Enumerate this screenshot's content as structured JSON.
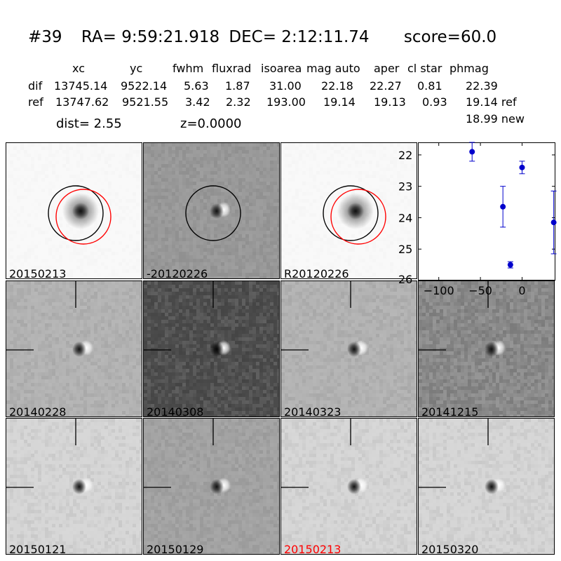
{
  "header": {
    "id": "#39",
    "ra": "RA= 9:59:21.918",
    "dec": "DEC= 2:12:11.74",
    "score": "score=60.0"
  },
  "table": {
    "columns": [
      "xc",
      "yc",
      "fwhm",
      "fluxrad",
      "isoarea",
      "mag auto",
      "aper",
      "cl star",
      "phmag"
    ],
    "dif": {
      "label": "dif",
      "values": [
        "13745.14",
        "9522.14",
        "5.63",
        "1.87",
        "31.00",
        "22.18",
        "22.27",
        "0.81",
        "22.39"
      ]
    },
    "ref": {
      "label": "ref",
      "values": [
        "13747.62",
        "9521.55",
        "3.42",
        "2.32",
        "193.00",
        "19.14",
        "19.13",
        "0.93",
        "19.14 ref"
      ]
    },
    "new_mag": "18.99 new"
  },
  "dist_text": "dist=  2.55",
  "z_text": "z=0.0000",
  "panels": [
    {
      "label": "20150213",
      "kind": "new",
      "label_color": "#000000"
    },
    {
      "label": "-20120226",
      "kind": "diff_top",
      "label_color": "#000000"
    },
    {
      "label": "R20120226",
      "kind": "ref",
      "label_color": "#000000"
    },
    {
      "label": "20140228",
      "kind": "diff",
      "label_color": "#000000"
    },
    {
      "label": "20140308",
      "kind": "diff_dark",
      "label_color": "#000000"
    },
    {
      "label": "20140323",
      "kind": "diff",
      "label_color": "#000000"
    },
    {
      "label": "20141215",
      "kind": "diff_noisy",
      "label_color": "#000000"
    },
    {
      "label": "20150121",
      "kind": "diff_light",
      "label_color": "#000000"
    },
    {
      "label": "20150129",
      "kind": "diff_mid",
      "label_color": "#000000"
    },
    {
      "label": "20150213",
      "kind": "diff_light",
      "label_color": "#ff0000"
    },
    {
      "label": "20150320",
      "kind": "diff_light",
      "label_color": "#000000"
    }
  ],
  "chart_data": {
    "type": "scatter",
    "title": "",
    "xlabel": "",
    "ylabel": "",
    "xlim": [
      -125,
      40
    ],
    "ylim": [
      26,
      21.6
    ],
    "y_inverted": true,
    "x_ticks": [
      -100,
      -50,
      0
    ],
    "y_ticks": [
      22,
      23,
      24,
      25,
      26
    ],
    "grid": false,
    "marker_color": "#0000cc",
    "points": [
      {
        "x": -60,
        "y": 21.9,
        "err": 0.3
      },
      {
        "x": -23,
        "y": 23.65,
        "err": 0.65
      },
      {
        "x": -14,
        "y": 25.5,
        "err": 0.1
      },
      {
        "x": 0,
        "y": 22.4,
        "err": 0.2
      },
      {
        "x": 38,
        "y": 24.15,
        "err": 1.0
      }
    ]
  }
}
